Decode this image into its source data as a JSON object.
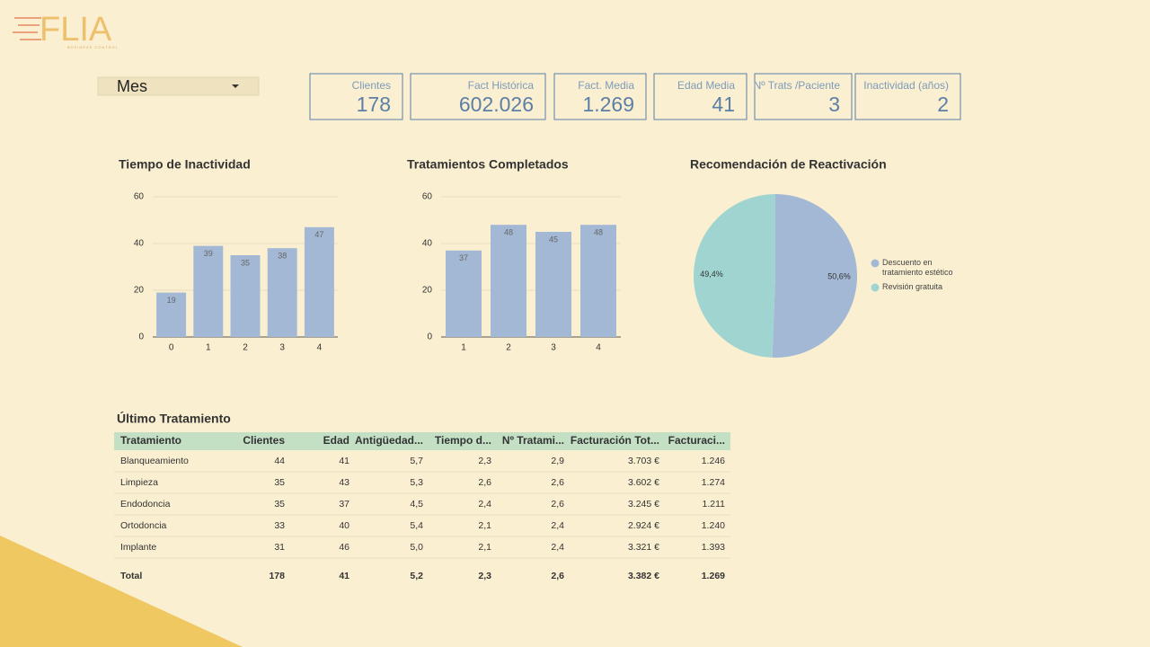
{
  "logo": {
    "text": "FLIA",
    "subtitle": "BUSINESS CONTROL"
  },
  "dropdown": {
    "label": "Mes"
  },
  "kpis": [
    {
      "label": "Clientes",
      "value": "178"
    },
    {
      "label": "Fact Histórica",
      "value": "602.026"
    },
    {
      "label": "Fact. Media",
      "value": "1.269"
    },
    {
      "label": "Edad Media",
      "value": "41"
    },
    {
      "label": "Nº Trats /Paciente",
      "value": "3"
    },
    {
      "label": "Inactividad (años)",
      "value": "2"
    }
  ],
  "chart_data": [
    {
      "type": "bar",
      "title": "Tiempo de Inactividad",
      "categories": [
        "0",
        "1",
        "2",
        "3",
        "4"
      ],
      "values": [
        19,
        39,
        35,
        38,
        47
      ],
      "color": "#a3b8d4",
      "ylim": [
        0,
        60
      ],
      "yticks": [
        0,
        20,
        40,
        60
      ],
      "grid": true
    },
    {
      "type": "bar",
      "title": "Tratamientos Completados",
      "categories": [
        "1",
        "2",
        "3",
        "4"
      ],
      "values": [
        37,
        48,
        45,
        48
      ],
      "color": "#a3b8d4",
      "ylim": [
        0,
        60
      ],
      "yticks": [
        0,
        20,
        40,
        60
      ],
      "grid": true
    },
    {
      "type": "pie",
      "title": "Recomendación de Reactivación",
      "categories": [
        "Descuento en tratamiento estético",
        "Revisión gratuita"
      ],
      "values": [
        50.6,
        49.4
      ],
      "value_labels": [
        "50,6%",
        "49,4%"
      ],
      "colors": [
        "#a3b8d4",
        "#a0d4d0"
      ],
      "legend": "right"
    }
  ],
  "table": {
    "title": "Último Tratamiento",
    "headers": [
      "Tratamiento",
      "Clientes",
      "Edad",
      "Antigüedad...",
      "Tiempo d...",
      "Nº Tratami...",
      "Facturación Tot...",
      "Facturaci..."
    ],
    "rows": [
      [
        "Blanqueamiento",
        "44",
        "41",
        "5,7",
        "2,3",
        "2,9",
        "3.703 €",
        "1.246"
      ],
      [
        "Limpieza",
        "35",
        "43",
        "5,3",
        "2,6",
        "2,6",
        "3.602 €",
        "1.274"
      ],
      [
        "Endodoncia",
        "35",
        "37",
        "4,5",
        "2,4",
        "2,6",
        "3.245 €",
        "1.211"
      ],
      [
        "Ortodoncia",
        "33",
        "40",
        "5,4",
        "2,1",
        "2,4",
        "2.924 €",
        "1.240"
      ],
      [
        "Implante",
        "31",
        "46",
        "5,0",
        "2,1",
        "2,4",
        "3.321 €",
        "1.393"
      ]
    ],
    "total": [
      "Total",
      "178",
      "41",
      "5,2",
      "2,3",
      "2,6",
      "3.382 €",
      "1.269"
    ]
  }
}
